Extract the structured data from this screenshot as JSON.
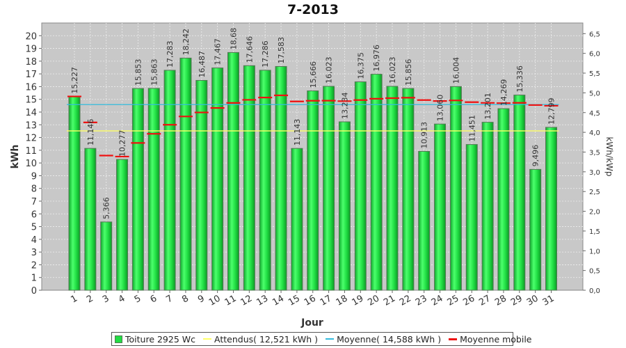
{
  "chart_data": {
    "type": "bar",
    "title": "7-2013",
    "xlabel": "Jour",
    "ylabel": "kWh",
    "y2label": "kWh/kWp",
    "ylim": [
      0,
      21
    ],
    "y2lim": [
      0,
      6.77
    ],
    "yticks": [
      0,
      1,
      2,
      3,
      4,
      5,
      6,
      7,
      8,
      9,
      10,
      11,
      12,
      13,
      14,
      15,
      16,
      17,
      18,
      19,
      20
    ],
    "y2ticks": [
      "0,0",
      "0,5",
      "1,0",
      "1,5",
      "2,0",
      "2,5",
      "3,0",
      "3,5",
      "4,0",
      "4,5",
      "5,0",
      "5,5",
      "6,0",
      "6,5"
    ],
    "y2tickvalues": [
      0,
      0.5,
      1.0,
      1.5,
      2.0,
      2.5,
      3.0,
      3.5,
      4.0,
      4.5,
      5.0,
      5.5,
      6.0,
      6.5
    ],
    "categories": [
      "1",
      "2",
      "3",
      "4",
      "5",
      "6",
      "7",
      "8",
      "9",
      "10",
      "11",
      "12",
      "13",
      "14",
      "15",
      "16",
      "17",
      "18",
      "19",
      "20",
      "21",
      "22",
      "23",
      "24",
      "25",
      "26",
      "27",
      "28",
      "29",
      "30",
      "31"
    ],
    "series": [
      {
        "name": "Toiture 2925 Wc",
        "type": "bar",
        "color": "#22dd44",
        "values": [
          15.227,
          11.146,
          5.366,
          10.277,
          15.853,
          15.863,
          17.283,
          18.242,
          16.487,
          17.467,
          18.68,
          17.646,
          17.286,
          17.583,
          11.143,
          15.666,
          16.023,
          13.234,
          16.375,
          16.976,
          16.023,
          15.856,
          10.913,
          13.06,
          16.004,
          11.451,
          13.201,
          14.269,
          15.336,
          9.496,
          12.799
        ],
        "labels": [
          "15,227",
          "11,146",
          "5,366",
          "10,277",
          "15,853",
          "15,863",
          "17,283",
          "18,242",
          "16,487",
          "17,467",
          "18,68",
          "17,646",
          "17,286",
          "17,583",
          "11,143",
          "15,666",
          "16,023",
          "13,234",
          "16,375",
          "16,976",
          "16,023",
          "15,856",
          "10,913",
          "13,060",
          "16,004",
          "11,451",
          "13,201",
          "14,269",
          "15,336",
          "9,496",
          "12,799"
        ]
      },
      {
        "name": "Attendus( 12,521 kWh )",
        "type": "hline",
        "color": "#ffff66",
        "value": 12.521
      },
      {
        "name": "Moyenne( 14,588 kWh )",
        "type": "hline",
        "color": "#33bbdd",
        "value": 14.588
      },
      {
        "name": "Moyenne mobile",
        "type": "step",
        "color": "#ee1111",
        "values": [
          15.227,
          13.187,
          10.58,
          10.504,
          11.574,
          12.289,
          13.0,
          13.655,
          13.97,
          14.32,
          14.717,
          14.961,
          15.14,
          15.314,
          14.836,
          14.888,
          14.895,
          14.858,
          14.943,
          15.044,
          15.093,
          15.128,
          14.944,
          14.867,
          14.913,
          14.779,
          14.721,
          14.702,
          14.725,
          14.551,
          14.495
        ]
      }
    ],
    "grid": true,
    "legend_position": "bottom"
  },
  "colors": {
    "plot_bg": "#c8c8c8",
    "bar_fill": "#22dd44",
    "bar_edge": "#557755",
    "expected": "#ffff66",
    "mean": "#33bbdd",
    "moving": "#ee1111"
  }
}
